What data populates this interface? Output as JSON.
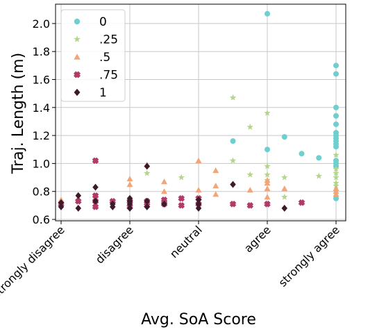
{
  "chart_data": {
    "type": "scatter",
    "title": "",
    "xlabel": "Avg. SoA Score",
    "ylabel": "Traj. Length (m)",
    "x_categories": [
      "strongly disagree",
      "disagree",
      "neutral",
      "agree",
      "strongly agree"
    ],
    "x_range": [
      1,
      5
    ],
    "ylim": [
      0.6,
      2.15
    ],
    "y_ticks": [
      "0.6",
      "0.8",
      "1.0",
      "1.2",
      "1.4",
      "1.6",
      "1.8",
      "2.0"
    ],
    "grid": true,
    "legend_position": "top-left",
    "series": [
      {
        "name": "0",
        "color": "#6fcfcf",
        "marker": "circle",
        "points": [
          [
            3.5,
            1.16
          ],
          [
            4.0,
            2.07
          ],
          [
            4.0,
            1.1
          ],
          [
            4.25,
            1.19
          ],
          [
            4.5,
            1.07
          ],
          [
            4.75,
            1.04
          ],
          [
            5.0,
            1.7
          ],
          [
            5.0,
            1.64
          ],
          [
            5.0,
            1.4
          ],
          [
            5.0,
            1.34
          ],
          [
            5.0,
            1.28
          ],
          [
            5.0,
            1.22
          ],
          [
            5.0,
            1.2
          ],
          [
            5.0,
            1.18
          ],
          [
            5.0,
            1.16
          ],
          [
            5.0,
            1.14
          ],
          [
            5.0,
            1.12
          ],
          [
            5.0,
            1.02
          ],
          [
            5.0,
            1.0
          ],
          [
            5.0,
            0.98
          ],
          [
            5.0,
            0.75
          ]
        ]
      },
      {
        "name": ".25",
        "color": "#b5d48c",
        "marker": "star",
        "points": [
          [
            2.25,
            0.93
          ],
          [
            2.75,
            0.9
          ],
          [
            3.5,
            1.47
          ],
          [
            3.5,
            1.02
          ],
          [
            3.75,
            1.26
          ],
          [
            3.75,
            0.92
          ],
          [
            4.0,
            1.36
          ],
          [
            4.0,
            0.98
          ],
          [
            4.0,
            0.92
          ],
          [
            4.0,
            0.88
          ],
          [
            4.25,
            0.9
          ],
          [
            4.25,
            0.76
          ],
          [
            4.75,
            0.91
          ],
          [
            5.0,
            1.06
          ],
          [
            5.0,
            0.96
          ],
          [
            5.0,
            0.93
          ],
          [
            5.0,
            0.9
          ],
          [
            5.0,
            0.86
          ],
          [
            5.0,
            0.84
          ]
        ]
      },
      {
        "name": ".5",
        "color": "#f0a679",
        "marker": "triangle",
        "points": [
          [
            1.0,
            0.74
          ],
          [
            2.0,
            0.89
          ],
          [
            2.0,
            0.85
          ],
          [
            2.25,
            0.99
          ],
          [
            2.5,
            0.87
          ],
          [
            2.5,
            0.8
          ],
          [
            3.0,
            1.02
          ],
          [
            3.0,
            0.81
          ],
          [
            3.25,
            0.95
          ],
          [
            3.25,
            0.84
          ],
          [
            3.25,
            0.78
          ],
          [
            3.75,
            0.81
          ],
          [
            4.0,
            0.88
          ],
          [
            4.0,
            0.86
          ],
          [
            4.0,
            0.82
          ],
          [
            4.0,
            0.76
          ],
          [
            4.25,
            0.82
          ],
          [
            5.0,
            0.82
          ],
          [
            5.0,
            0.8
          ],
          [
            5.0,
            0.78
          ]
        ]
      },
      {
        "name": ".75",
        "color": "#b03a68",
        "marker": "x",
        "points": [
          [
            1.0,
            0.71
          ],
          [
            1.25,
            0.73
          ],
          [
            1.5,
            1.02
          ],
          [
            1.5,
            0.77
          ],
          [
            1.5,
            0.73
          ],
          [
            1.5,
            0.69
          ],
          [
            1.75,
            0.73
          ],
          [
            2.0,
            0.73
          ],
          [
            2.0,
            0.69
          ],
          [
            2.25,
            0.73
          ],
          [
            2.25,
            0.7
          ],
          [
            2.5,
            0.74
          ],
          [
            2.5,
            0.71
          ],
          [
            2.75,
            0.75
          ],
          [
            2.75,
            0.7
          ],
          [
            3.0,
            0.75
          ],
          [
            3.0,
            0.71
          ],
          [
            3.5,
            0.71
          ],
          [
            3.75,
            0.7
          ],
          [
            4.0,
            0.71
          ],
          [
            4.5,
            0.72
          ]
        ]
      },
      {
        "name": "1",
        "color": "#3d1a2a",
        "marker": "diamond",
        "points": [
          [
            1.0,
            0.72
          ],
          [
            1.0,
            0.69
          ],
          [
            1.25,
            0.77
          ],
          [
            1.25,
            0.68
          ],
          [
            1.5,
            0.83
          ],
          [
            1.5,
            0.73
          ],
          [
            1.75,
            0.71
          ],
          [
            1.75,
            0.69
          ],
          [
            2.0,
            0.75
          ],
          [
            2.0,
            0.73
          ],
          [
            2.0,
            0.71
          ],
          [
            2.0,
            0.68
          ],
          [
            2.25,
            0.98
          ],
          [
            2.25,
            0.73
          ],
          [
            2.25,
            0.69
          ],
          [
            2.5,
            0.71
          ],
          [
            3.0,
            0.74
          ],
          [
            3.0,
            0.71
          ],
          [
            3.0,
            0.68
          ],
          [
            3.5,
            0.85
          ],
          [
            4.25,
            0.68
          ]
        ]
      }
    ]
  }
}
